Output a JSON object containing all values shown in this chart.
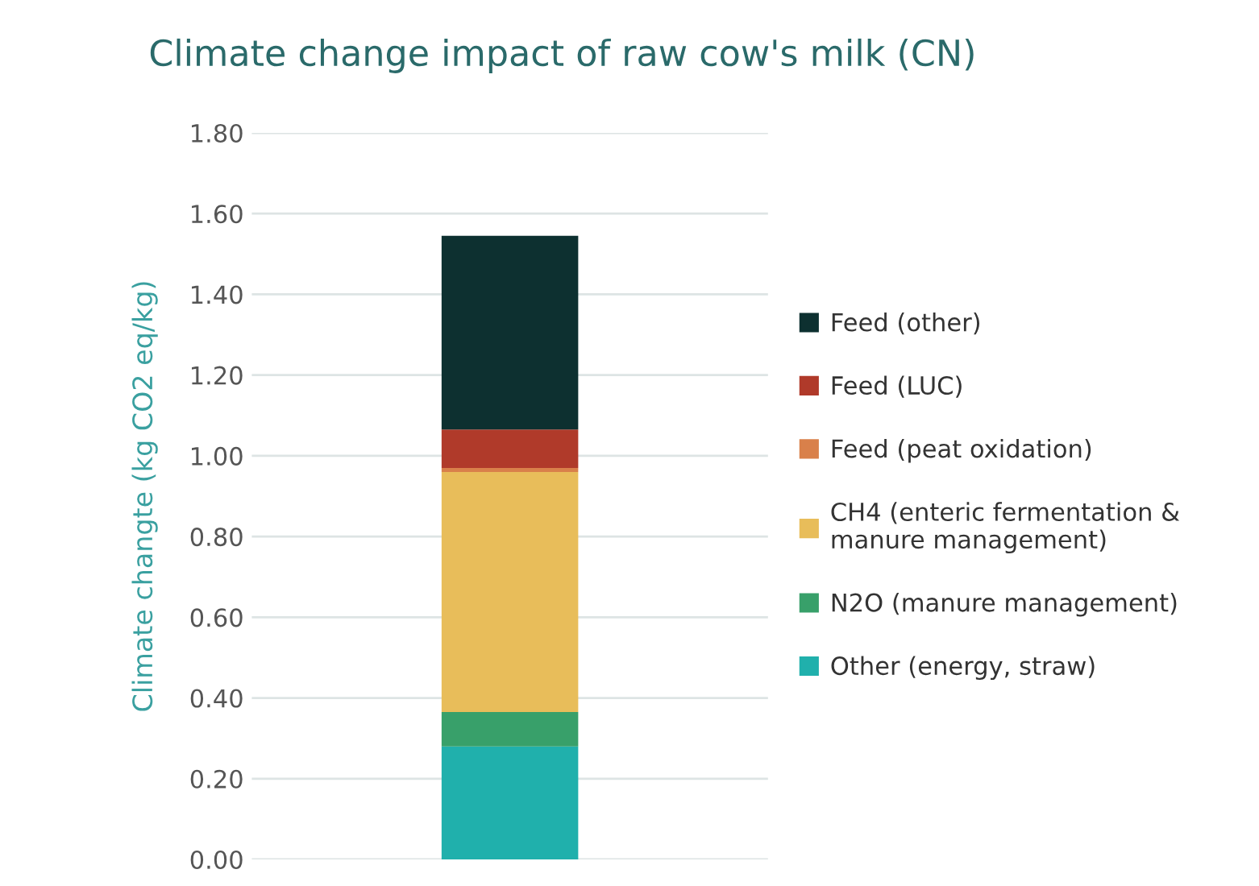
{
  "chart_data": {
    "type": "bar",
    "title": "Climate change impact of raw cow's milk (CN)",
    "ylabel": "Climate changte (kg CO2 eq/kg)",
    "categories": [
      null
    ],
    "stacked": true,
    "series": [
      {
        "name": "Other (energy, straw)",
        "color": "#20b0ac",
        "values": [
          0.28
        ]
      },
      {
        "name": "N2O (manure management)",
        "color": "#38a06a",
        "values": [
          0.085
        ]
      },
      {
        "name": "CH4 (enteric fermentation &\nmanure management)",
        "color": "#e8bd5a",
        "values": [
          0.595
        ]
      },
      {
        "name": "Feed (peat oxidation)",
        "color": "#d9804a",
        "values": [
          0.01
        ]
      },
      {
        "name": "Feed (LUC)",
        "color": "#b03a2a",
        "values": [
          0.095
        ]
      },
      {
        "name": "Feed (other)",
        "color": "#0d3030",
        "values": [
          0.48
        ]
      }
    ],
    "ylim": [
      0,
      1.8
    ],
    "yticks": [
      {
        "value": 0,
        "label": "0.00"
      },
      {
        "value": 0.2,
        "label": "0.20"
      },
      {
        "value": 0.4,
        "label": "0.40"
      },
      {
        "value": 0.6,
        "label": "0.60"
      },
      {
        "value": 0.8,
        "label": "0.80"
      },
      {
        "value": 1.0,
        "label": "1.00"
      },
      {
        "value": 1.2,
        "label": "1.20"
      },
      {
        "value": 1.4,
        "label": "1.40"
      },
      {
        "value": 1.6,
        "label": "1.60"
      },
      {
        "value": 1.8,
        "label": "1.80"
      }
    ],
    "grid": "y",
    "legend": "right"
  }
}
